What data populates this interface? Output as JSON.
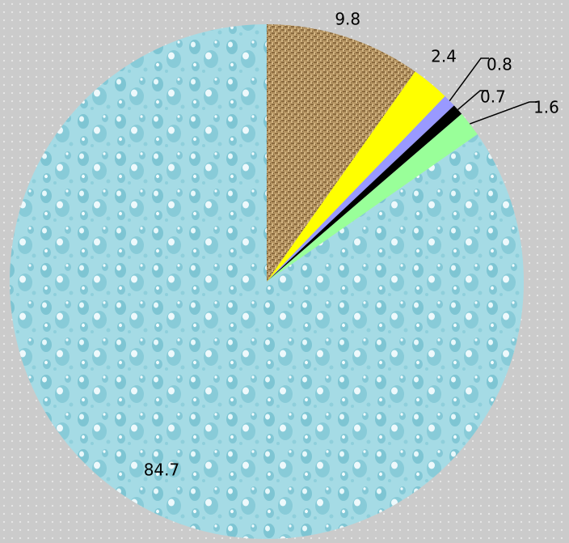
{
  "chart_data": {
    "type": "pie",
    "title": "",
    "start_angle": "12 o'clock, clockwise",
    "slices": [
      {
        "value": 9.8,
        "label": "9.8",
        "color": "#b08d5a",
        "fill": "burlap-texture"
      },
      {
        "value": 2.4,
        "label": "2.4",
        "color": "#ffff00"
      },
      {
        "value": 0.8,
        "label": "0.8",
        "color": "#9999ff"
      },
      {
        "value": 0.7,
        "label": "0.7",
        "color": "#000000"
      },
      {
        "value": 1.6,
        "label": "1.6",
        "color": "#99ff99"
      },
      {
        "value": 84.7,
        "label": "84.7",
        "color": "#a5dde6",
        "fill": "water-drops-texture"
      }
    ]
  }
}
